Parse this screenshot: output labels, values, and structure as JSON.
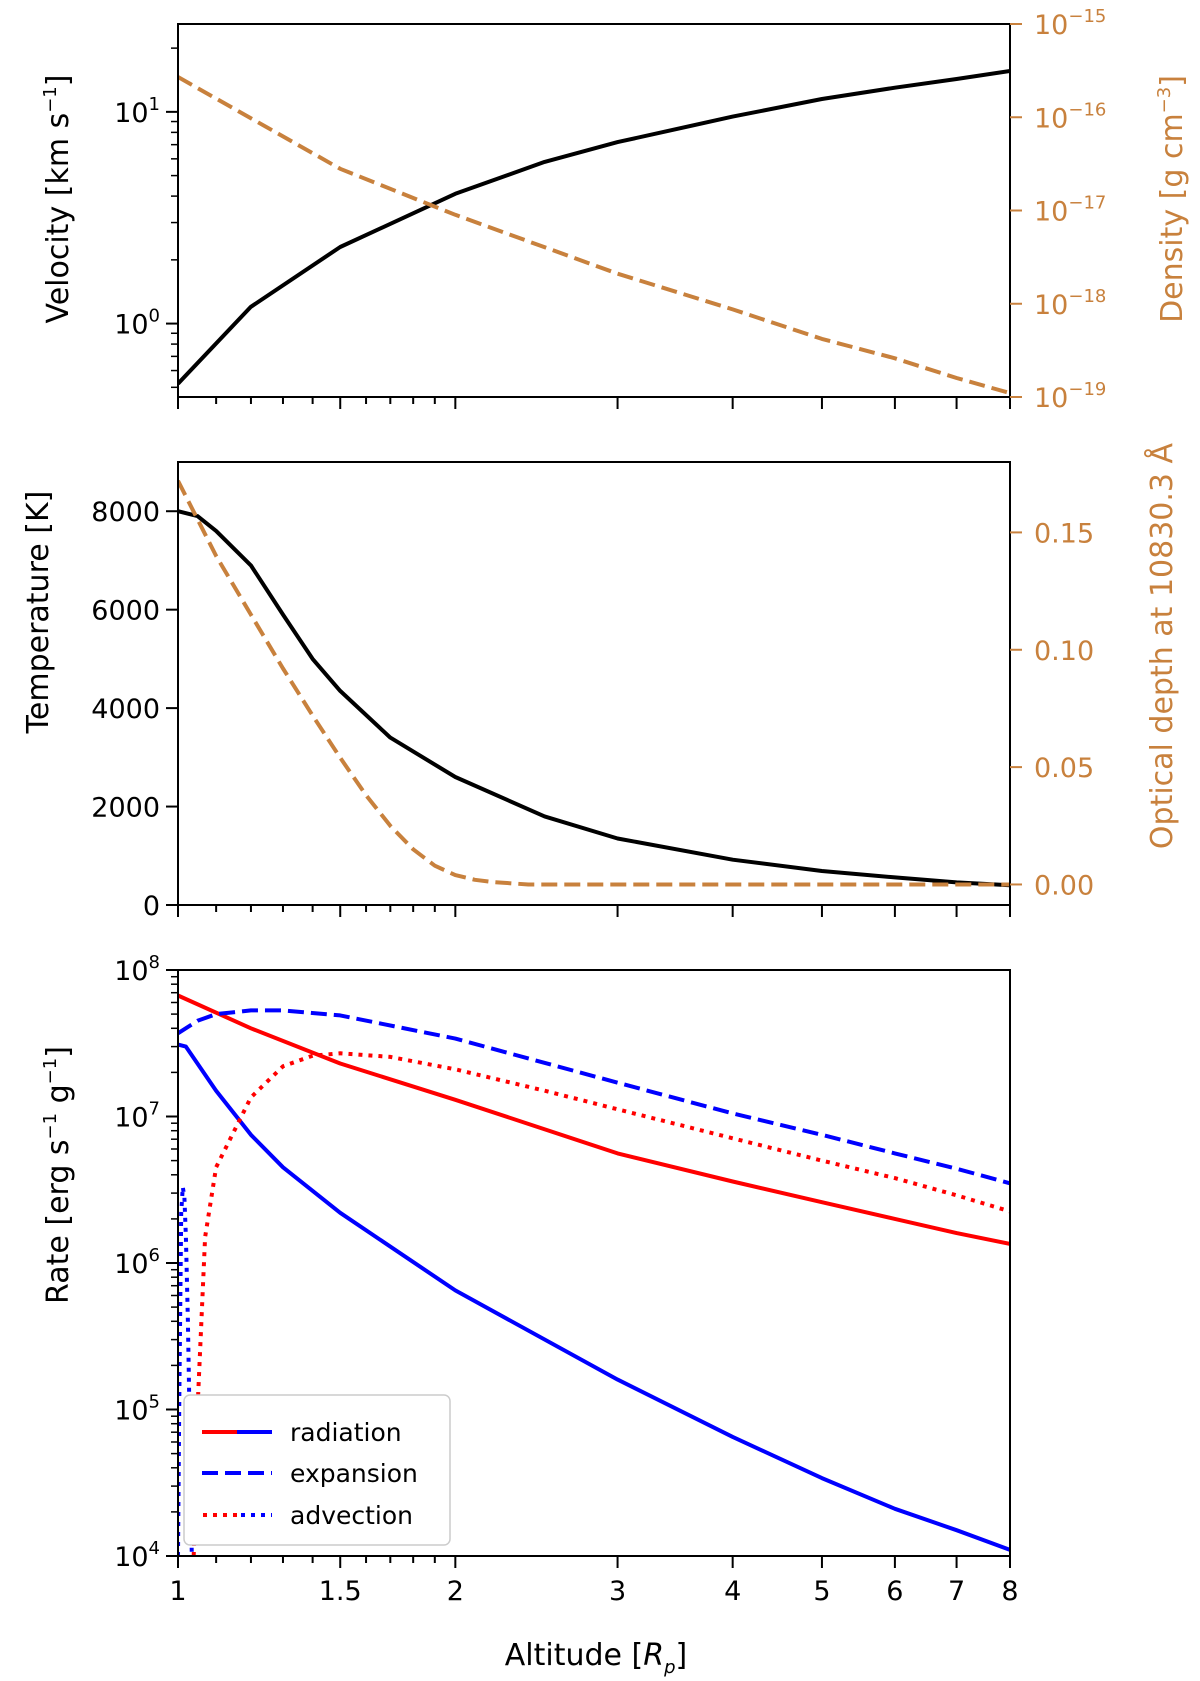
{
  "colors": {
    "black": "#000000",
    "tan": "#c8813d",
    "red": "#ff0000",
    "blue": "#0000ff"
  },
  "chart_data": [
    {
      "type": "line",
      "x_scale": "log",
      "xlim": [
        1,
        8
      ],
      "ylabel": {
        "pre": "Velocity [km s",
        "exp": "−1",
        "post": "]"
      },
      "ylim": [
        0.45,
        26
      ],
      "y_scale": "log",
      "yticks": [
        {
          "base": "10",
          "exp": "0",
          "value": 1
        },
        {
          "base": "10",
          "exp": "1",
          "value": 10
        }
      ],
      "y2label": {
        "pre": "Density [g cm",
        "exp": "−3",
        "post": "]"
      },
      "y2lim": [
        1e-19,
        1e-15
      ],
      "y2_scale": "log",
      "y2ticks": [
        {
          "base": "10",
          "exp": "−19",
          "value": 1e-19
        },
        {
          "base": "10",
          "exp": "−18",
          "value": 1e-18
        },
        {
          "base": "10",
          "exp": "−17",
          "value": 1e-17
        },
        {
          "base": "10",
          "exp": "−16",
          "value": 1e-16
        },
        {
          "base": "10",
          "exp": "−15",
          "value": 1e-15
        }
      ],
      "series": [
        {
          "axis": "left",
          "color": "black",
          "style": "solid",
          "x": [
            1,
            1.2,
            1.5,
            2,
            2.5,
            3,
            4,
            5,
            6,
            7,
            8
          ],
          "y": [
            0.52,
            1.2,
            2.3,
            4.1,
            5.8,
            7.2,
            9.5,
            11.5,
            13.0,
            14.3,
            15.6
          ]
        },
        {
          "axis": "right",
          "color": "tan",
          "style": "dashed",
          "x": [
            1,
            1.5,
            2,
            3,
            4,
            5,
            6,
            7,
            8
          ],
          "y": [
            2.7e-16,
            2.8e-17,
            9e-18,
            2.1e-18,
            8.7e-19,
            4.2e-19,
            2.6e-19,
            1.6e-19,
            1.1e-19
          ]
        }
      ]
    },
    {
      "type": "line",
      "x_scale": "log",
      "xlim": [
        1,
        8
      ],
      "ylabel": {
        "pre": "Temperature [K]",
        "exp": "",
        "post": ""
      },
      "ylim": [
        0,
        9000
      ],
      "yticks": [
        {
          "label": "0",
          "value": 0
        },
        {
          "label": "2000",
          "value": 2000
        },
        {
          "label": "4000",
          "value": 4000
        },
        {
          "label": "6000",
          "value": 6000
        },
        {
          "label": "8000",
          "value": 8000
        }
      ],
      "y2label": {
        "pre": "Optical depth at 10830.3 Å",
        "exp": "",
        "post": ""
      },
      "y2lim": [
        -0.00875,
        0.18
      ],
      "y2ticks": [
        {
          "label": "0.00",
          "value": 0
        },
        {
          "label": "0.05",
          "value": 0.05
        },
        {
          "label": "0.10",
          "value": 0.1
        },
        {
          "label": "0.15",
          "value": 0.15
        }
      ],
      "series": [
        {
          "axis": "left",
          "color": "black",
          "style": "solid",
          "x": [
            1,
            1.05,
            1.1,
            1.2,
            1.3,
            1.4,
            1.5,
            1.7,
            2,
            2.5,
            3,
            4,
            5,
            6,
            7,
            8
          ],
          "y": [
            8000,
            7900,
            7600,
            6900,
            5900,
            5000,
            4350,
            3400,
            2600,
            1800,
            1350,
            920,
            690,
            560,
            460,
            400
          ]
        },
        {
          "axis": "right",
          "color": "tan",
          "style": "dashed",
          "x": [
            1,
            1.1,
            1.2,
            1.3,
            1.4,
            1.5,
            1.6,
            1.7,
            1.8,
            1.9,
            2.0,
            2.1,
            2.2,
            2.4,
            3,
            8
          ],
          "y": [
            0.172,
            0.14,
            0.115,
            0.092,
            0.072,
            0.054,
            0.038,
            0.025,
            0.015,
            0.008,
            0.004,
            0.002,
            0.001,
            0.0,
            0.0,
            0.0
          ]
        }
      ]
    },
    {
      "type": "line",
      "x_scale": "log",
      "xlim": [
        1,
        8
      ],
      "xlabel": {
        "pre": "Altitude [",
        "var": "R",
        "sub": "p",
        "post": "]"
      },
      "xticks": [
        "1",
        "1.5",
        "2",
        "3",
        "4",
        "5",
        "6",
        "7",
        "8"
      ],
      "ylabel": {
        "pre": "Rate [erg s",
        "exp": "−1",
        "mid": " g",
        "exp2": "−1",
        "post": "]"
      },
      "ylim": [
        10000.0,
        100000000.0
      ],
      "y_scale": "log",
      "yticks": [
        {
          "base": "10",
          "exp": "4",
          "value": 10000.0
        },
        {
          "base": "10",
          "exp": "5",
          "value": 100000.0
        },
        {
          "base": "10",
          "exp": "6",
          "value": 1000000.0
        },
        {
          "base": "10",
          "exp": "7",
          "value": 10000000.0
        },
        {
          "base": "10",
          "exp": "8",
          "value": 100000000.0
        }
      ],
      "legend": {
        "placement": "lower left",
        "entries": [
          {
            "label": "radiation",
            "style": "solid",
            "colors": [
              "red",
              "blue"
            ]
          },
          {
            "label": "expansion",
            "style": "dashed",
            "colors": [
              "blue"
            ]
          },
          {
            "label": "advection",
            "style": "dotted",
            "colors": [
              "red",
              "blue"
            ]
          }
        ]
      },
      "series": [
        {
          "name": "radiation",
          "color": "red",
          "style": "solid",
          "x": [
            1,
            1.2,
            1.5,
            2,
            3,
            4,
            5,
            6,
            7,
            8
          ],
          "y": [
            67000000.0,
            40000000.0,
            23000000.0,
            13000000.0,
            5600000.0,
            3600000.0,
            2600000.0,
            2000000.0,
            1600000.0,
            1350000.0
          ]
        },
        {
          "name": "radiation",
          "color": "blue",
          "style": "solid",
          "x": [
            1,
            1.02,
            1.1,
            1.2,
            1.3,
            1.5,
            2,
            3,
            4,
            5,
            6,
            7,
            8
          ],
          "y": [
            31000000.0,
            30000000.0,
            15000000.0,
            7500000.0,
            4500000.0,
            2200000.0,
            650000.0,
            160000.0,
            65000.0,
            34000.0,
            21000.0,
            15000.0,
            11000.0
          ]
        },
        {
          "name": "expansion",
          "color": "blue",
          "style": "dashed",
          "x": [
            1,
            1.05,
            1.1,
            1.2,
            1.3,
            1.5,
            2,
            3,
            4,
            5,
            6,
            7,
            8
          ],
          "y": [
            37000000.0,
            45000000.0,
            50000000.0,
            53000000.0,
            53000000.0,
            49000000.0,
            34000000.0,
            17000000.0,
            10500000.0,
            7500000.0,
            5600000.0,
            4400000.0,
            3500000.0
          ]
        },
        {
          "name": "advection",
          "color": "blue",
          "style": "dotted",
          "x": [
            1,
            1.003,
            1.008,
            1.012,
            1.016,
            1.02,
            1.025,
            1.03,
            1.035
          ],
          "y": [
            10000.0,
            100000.0,
            2200000.0,
            3300000.0,
            2800000.0,
            1500000.0,
            400000.0,
            70000.0,
            10000.0
          ]
        },
        {
          "name": "advection",
          "color": "red",
          "style": "dotted",
          "x": [
            1.04,
            1.05,
            1.07,
            1.1,
            1.2,
            1.3,
            1.4,
            1.5,
            1.7,
            2,
            2.5,
            3,
            4,
            5,
            6,
            7,
            8
          ],
          "y": [
            10000.0,
            100000.0,
            1500000.0,
            4500000.0,
            13500000.0,
            22000000.0,
            26000000.0,
            27000000.0,
            25500000.0,
            21000000.0,
            15000000.0,
            11200000.0,
            7100000.0,
            5000000.0,
            3800000.0,
            2900000.0,
            2250000.0
          ]
        }
      ]
    }
  ]
}
